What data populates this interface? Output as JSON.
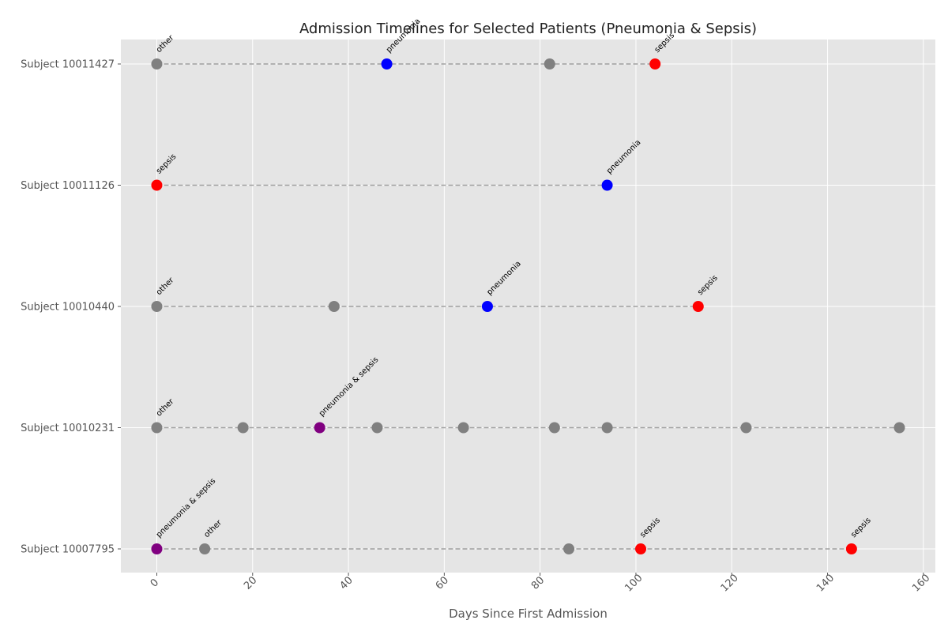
{
  "chart_data": {
    "type": "scatter",
    "title": "Admission Timelines for Selected Patients (Pneumonia & Sepsis)",
    "xlabel": "Days Since First Admission",
    "ylabel": "",
    "xlim": [
      -7.5,
      162.5
    ],
    "xticks": [
      0,
      20,
      40,
      60,
      80,
      100,
      120,
      140,
      160
    ],
    "grid": true,
    "colors": {
      "pneumonia": "#0000ff",
      "sepsis": "#ff0000",
      "pneumonia & sepsis": "#800080",
      "other": "#808080",
      "connector": "#a0a0a0",
      "plot_background": "#e5e5e5"
    },
    "subjects": [
      {
        "label": "Subject 10011427",
        "points": [
          {
            "x": 0,
            "category": "other",
            "annotation": "other"
          },
          {
            "x": 48,
            "category": "pneumonia",
            "annotation": "pneumonia"
          },
          {
            "x": 82,
            "category": "other",
            "annotation": ""
          },
          {
            "x": 104,
            "category": "sepsis",
            "annotation": "sepsis"
          }
        ]
      },
      {
        "label": "Subject 10011126",
        "points": [
          {
            "x": 0,
            "category": "sepsis",
            "annotation": "sepsis"
          },
          {
            "x": 94,
            "category": "pneumonia",
            "annotation": "pneumonia"
          }
        ]
      },
      {
        "label": "Subject 10010440",
        "points": [
          {
            "x": 0,
            "category": "other",
            "annotation": "other"
          },
          {
            "x": 37,
            "category": "other",
            "annotation": ""
          },
          {
            "x": 69,
            "category": "pneumonia",
            "annotation": "pneumonia"
          },
          {
            "x": 113,
            "category": "sepsis",
            "annotation": "sepsis"
          }
        ]
      },
      {
        "label": "Subject 10010231",
        "points": [
          {
            "x": 0,
            "category": "other",
            "annotation": "other"
          },
          {
            "x": 18,
            "category": "other",
            "annotation": ""
          },
          {
            "x": 34,
            "category": "pneumonia & sepsis",
            "annotation": "pneumonia & sepsis"
          },
          {
            "x": 46,
            "category": "other",
            "annotation": ""
          },
          {
            "x": 64,
            "category": "other",
            "annotation": ""
          },
          {
            "x": 83,
            "category": "other",
            "annotation": ""
          },
          {
            "x": 94,
            "category": "other",
            "annotation": ""
          },
          {
            "x": 123,
            "category": "other",
            "annotation": ""
          },
          {
            "x": 155,
            "category": "other",
            "annotation": ""
          }
        ]
      },
      {
        "label": "Subject 10007795",
        "points": [
          {
            "x": 0,
            "category": "pneumonia & sepsis",
            "annotation": "pneumonia & sepsis"
          },
          {
            "x": 10,
            "category": "other",
            "annotation": "other"
          },
          {
            "x": 86,
            "category": "other",
            "annotation": ""
          },
          {
            "x": 101,
            "category": "sepsis",
            "annotation": "sepsis"
          },
          {
            "x": 145,
            "category": "sepsis",
            "annotation": "sepsis"
          }
        ]
      }
    ]
  }
}
